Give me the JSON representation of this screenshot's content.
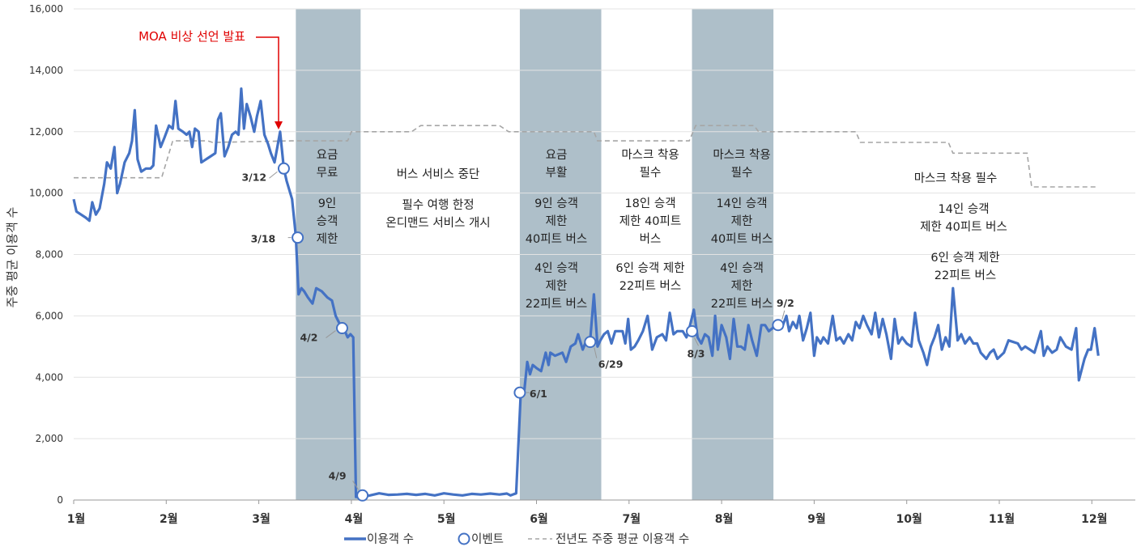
{
  "chart_data": {
    "type": "line",
    "ylabel": "주중 평균 이용객 수",
    "ylim": [
      0,
      16000
    ],
    "yticks": [
      "0",
      "2,000",
      "4,000",
      "6,000",
      "8,000",
      "10,000",
      "12,000",
      "14,000",
      "16,000"
    ],
    "months": [
      "1월",
      "2월",
      "3월",
      "4월",
      "5월",
      "6월",
      "7월",
      "8월",
      "9월",
      "10월",
      "11월",
      "12월"
    ],
    "series": [
      {
        "name": "이용객 수",
        "color": "#4472C4",
        "points": [
          [
            1.0,
            9800
          ],
          [
            1.03,
            9400
          ],
          [
            1.08,
            9300
          ],
          [
            1.13,
            9200
          ],
          [
            1.17,
            9100
          ],
          [
            1.2,
            9700
          ],
          [
            1.24,
            9300
          ],
          [
            1.28,
            9500
          ],
          [
            1.33,
            10300
          ],
          [
            1.36,
            11000
          ],
          [
            1.4,
            10800
          ],
          [
            1.44,
            11500
          ],
          [
            1.47,
            10000
          ],
          [
            1.5,
            10300
          ],
          [
            1.55,
            11000
          ],
          [
            1.6,
            11300
          ],
          [
            1.63,
            11700
          ],
          [
            1.66,
            12700
          ],
          [
            1.69,
            11100
          ],
          [
            1.73,
            10700
          ],
          [
            1.78,
            10800
          ],
          [
            1.83,
            10800
          ],
          [
            1.86,
            10900
          ],
          [
            1.89,
            12200
          ],
          [
            1.94,
            11500
          ],
          [
            1.98,
            11800
          ],
          [
            2.03,
            12200
          ],
          [
            2.07,
            12100
          ],
          [
            2.1,
            13000
          ],
          [
            2.13,
            12100
          ],
          [
            2.18,
            12000
          ],
          [
            2.22,
            11900
          ],
          [
            2.25,
            12000
          ],
          [
            2.28,
            11500
          ],
          [
            2.31,
            12100
          ],
          [
            2.35,
            12000
          ],
          [
            2.38,
            11000
          ],
          [
            2.43,
            11100
          ],
          [
            2.48,
            11200
          ],
          [
            2.53,
            11300
          ],
          [
            2.56,
            12400
          ],
          [
            2.59,
            12600
          ],
          [
            2.63,
            11200
          ],
          [
            2.67,
            11500
          ],
          [
            2.71,
            11900
          ],
          [
            2.75,
            12000
          ],
          [
            2.78,
            11900
          ],
          [
            2.81,
            13400
          ],
          [
            2.84,
            12100
          ],
          [
            2.87,
            12900
          ],
          [
            2.91,
            12500
          ],
          [
            2.95,
            12000
          ],
          [
            2.98,
            12500
          ],
          [
            3.02,
            13000
          ],
          [
            3.06,
            11900
          ],
          [
            3.1,
            11600
          ],
          [
            3.13,
            11300
          ],
          [
            3.17,
            11000
          ],
          [
            3.2,
            11500
          ],
          [
            3.23,
            12000
          ],
          [
            3.27,
            10800
          ],
          [
            3.3,
            10400
          ],
          [
            3.36,
            9800
          ],
          [
            3.4,
            8600
          ],
          [
            3.43,
            6700
          ],
          [
            3.46,
            6900
          ],
          [
            3.49,
            6800
          ],
          [
            3.53,
            6600
          ],
          [
            3.58,
            6400
          ],
          [
            3.62,
            6900
          ],
          [
            3.68,
            6800
          ],
          [
            3.74,
            6600
          ],
          [
            3.79,
            6500
          ],
          [
            3.83,
            6000
          ],
          [
            3.88,
            5700
          ],
          [
            3.93,
            5500
          ],
          [
            3.96,
            5300
          ],
          [
            3.99,
            5400
          ],
          [
            4.02,
            5300
          ],
          [
            4.05,
            100
          ],
          [
            4.1,
            100
          ],
          [
            4.2,
            150
          ],
          [
            4.3,
            220
          ],
          [
            4.4,
            170
          ],
          [
            4.5,
            180
          ],
          [
            4.6,
            200
          ],
          [
            4.7,
            170
          ],
          [
            4.8,
            200
          ],
          [
            4.9,
            150
          ],
          [
            5.0,
            220
          ],
          [
            5.1,
            180
          ],
          [
            5.2,
            150
          ],
          [
            5.3,
            200
          ],
          [
            5.4,
            180
          ],
          [
            5.5,
            210
          ],
          [
            5.6,
            180
          ],
          [
            5.68,
            210
          ],
          [
            5.72,
            150
          ],
          [
            5.78,
            220
          ],
          [
            5.83,
            3500
          ],
          [
            5.87,
            3600
          ],
          [
            5.9,
            4500
          ],
          [
            5.93,
            4100
          ],
          [
            5.96,
            4400
          ],
          [
            6.0,
            4300
          ],
          [
            6.05,
            4200
          ],
          [
            6.1,
            4800
          ],
          [
            6.13,
            4400
          ],
          [
            6.15,
            4800
          ],
          [
            6.2,
            4700
          ],
          [
            6.28,
            4800
          ],
          [
            6.32,
            4500
          ],
          [
            6.37,
            5000
          ],
          [
            6.42,
            5100
          ],
          [
            6.45,
            5400
          ],
          [
            6.5,
            4900
          ],
          [
            6.54,
            5200
          ],
          [
            6.58,
            5200
          ],
          [
            6.62,
            6700
          ],
          [
            6.66,
            5000
          ],
          [
            6.69,
            5200
          ],
          [
            6.73,
            5400
          ],
          [
            6.77,
            5500
          ],
          [
            6.81,
            5100
          ],
          [
            6.85,
            5500
          ],
          [
            6.9,
            5500
          ],
          [
            6.93,
            5500
          ],
          [
            6.96,
            5100
          ],
          [
            6.99,
            5900
          ],
          [
            7.02,
            4900
          ],
          [
            7.06,
            5000
          ],
          [
            7.1,
            5200
          ],
          [
            7.15,
            5500
          ],
          [
            7.2,
            6000
          ],
          [
            7.25,
            4900
          ],
          [
            7.3,
            5300
          ],
          [
            7.36,
            5400
          ],
          [
            7.4,
            5200
          ],
          [
            7.44,
            6100
          ],
          [
            7.48,
            5400
          ],
          [
            7.52,
            5500
          ],
          [
            7.55,
            5500
          ],
          [
            7.58,
            5500
          ],
          [
            7.62,
            5300
          ],
          [
            7.66,
            5700
          ],
          [
            7.7,
            6200
          ],
          [
            7.74,
            5300
          ],
          [
            7.78,
            5100
          ],
          [
            7.82,
            5400
          ],
          [
            7.86,
            5300
          ],
          [
            7.9,
            4700
          ],
          [
            7.93,
            6000
          ],
          [
            7.96,
            4900
          ],
          [
            8.0,
            5700
          ],
          [
            8.05,
            5300
          ],
          [
            8.09,
            4600
          ],
          [
            8.13,
            5900
          ],
          [
            8.17,
            5000
          ],
          [
            8.21,
            5000
          ],
          [
            8.25,
            4900
          ],
          [
            8.29,
            5700
          ],
          [
            8.33,
            5200
          ],
          [
            8.38,
            4700
          ],
          [
            8.43,
            5700
          ],
          [
            8.47,
            5700
          ],
          [
            8.51,
            5500
          ],
          [
            8.55,
            5600
          ],
          [
            8.59,
            5800
          ],
          [
            8.65,
            5600
          ],
          [
            8.7,
            6000
          ],
          [
            8.73,
            5500
          ],
          [
            8.77,
            5800
          ],
          [
            8.81,
            5600
          ],
          [
            8.84,
            6000
          ],
          [
            8.88,
            5200
          ],
          [
            8.92,
            5600
          ],
          [
            8.96,
            6100
          ],
          [
            9.0,
            4700
          ],
          [
            9.03,
            5300
          ],
          [
            9.07,
            5100
          ],
          [
            9.1,
            5300
          ],
          [
            9.15,
            5100
          ],
          [
            9.2,
            6000
          ],
          [
            9.24,
            5200
          ],
          [
            9.28,
            5300
          ],
          [
            9.32,
            5100
          ],
          [
            9.37,
            5400
          ],
          [
            9.41,
            5200
          ],
          [
            9.45,
            5800
          ],
          [
            9.49,
            5600
          ],
          [
            9.53,
            6000
          ],
          [
            9.57,
            5700
          ],
          [
            9.62,
            5400
          ],
          [
            9.66,
            6100
          ],
          [
            9.7,
            5300
          ],
          [
            9.74,
            5900
          ],
          [
            9.78,
            5400
          ],
          [
            9.83,
            4600
          ],
          [
            9.87,
            5900
          ],
          [
            9.91,
            5100
          ],
          [
            9.95,
            5300
          ],
          [
            10.0,
            5100
          ],
          [
            10.05,
            5000
          ],
          [
            10.09,
            6100
          ],
          [
            10.13,
            5200
          ],
          [
            10.18,
            4800
          ],
          [
            10.22,
            4400
          ],
          [
            10.26,
            5000
          ],
          [
            10.3,
            5300
          ],
          [
            10.34,
            5700
          ],
          [
            10.38,
            4900
          ],
          [
            10.42,
            5300
          ],
          [
            10.46,
            5000
          ],
          [
            10.5,
            6900
          ],
          [
            10.55,
            5200
          ],
          [
            10.59,
            5400
          ],
          [
            10.63,
            5100
          ],
          [
            10.68,
            5300
          ],
          [
            10.72,
            5100
          ],
          [
            10.76,
            5100
          ],
          [
            10.8,
            4800
          ],
          [
            10.86,
            4600
          ],
          [
            10.9,
            4800
          ],
          [
            10.94,
            4900
          ],
          [
            10.98,
            4600
          ],
          [
            11.05,
            4800
          ],
          [
            11.1,
            5200
          ],
          [
            11.2,
            5100
          ],
          [
            11.24,
            4900
          ],
          [
            11.28,
            5000
          ],
          [
            11.33,
            4900
          ],
          [
            11.38,
            4800
          ],
          [
            11.45,
            5500
          ],
          [
            11.48,
            4700
          ],
          [
            11.52,
            5000
          ],
          [
            11.57,
            4800
          ],
          [
            11.62,
            4900
          ],
          [
            11.66,
            5300
          ],
          [
            11.72,
            5000
          ],
          [
            11.78,
            4900
          ],
          [
            11.83,
            5600
          ],
          [
            11.86,
            3900
          ],
          [
            11.92,
            4600
          ],
          [
            11.96,
            4900
          ],
          [
            11.99,
            4900
          ],
          [
            12.03,
            5600
          ],
          [
            12.07,
            4700
          ]
        ]
      },
      {
        "name": "전년도 주중 평균 이용객 수",
        "color": "#A6A6A6",
        "steps": [
          [
            1.0,
            10500
          ],
          [
            1.95,
            10500
          ],
          [
            2.07,
            11700
          ],
          [
            2.45,
            11700
          ],
          [
            2.5,
            11650
          ],
          [
            3.35,
            11700
          ],
          [
            3.96,
            11700
          ],
          [
            4.0,
            12000
          ],
          [
            4.65,
            12000
          ],
          [
            4.75,
            12200
          ],
          [
            5.6,
            12200
          ],
          [
            5.7,
            12000
          ],
          [
            6.62,
            12000
          ],
          [
            6.66,
            11700
          ],
          [
            7.65,
            11700
          ],
          [
            7.72,
            12200
          ],
          [
            8.35,
            12200
          ],
          [
            8.4,
            12000
          ],
          [
            9.45,
            12000
          ],
          [
            9.5,
            11650
          ],
          [
            10.45,
            11650
          ],
          [
            10.5,
            11300
          ],
          [
            11.3,
            11300
          ],
          [
            11.35,
            10200
          ],
          [
            12.07,
            10200
          ]
        ]
      }
    ],
    "events": [
      {
        "label": "3/12",
        "x": 3.27,
        "y": 10800
      },
      {
        "label": "3/18",
        "x": 3.42,
        "y": 8550
      },
      {
        "label": "4/2",
        "x": 3.9,
        "y": 5600
      },
      {
        "label": "4/9",
        "x": 4.12,
        "y": 150
      },
      {
        "label": "6/1",
        "x": 5.82,
        "y": 3500
      },
      {
        "label": "6/29",
        "x": 6.58,
        "y": 5150
      },
      {
        "label": "8/3",
        "x": 7.68,
        "y": 5500
      },
      {
        "label": "9/2",
        "x": 8.61,
        "y": 5700
      }
    ],
    "shaded_periods": [
      [
        3.4,
        4.1
      ],
      [
        5.82,
        6.7
      ],
      [
        7.68,
        8.56
      ]
    ],
    "annotations": {
      "moa": "MOA 비상 선언 발표",
      "p1_l1": "요금",
      "p1_l2": "무료",
      "p1_l3": "9인",
      "p1_l4": "승객",
      "p1_l5": "제한",
      "p2_l1": "버스 서비스 중단",
      "p2_l2": "필수 여행 한정",
      "p2_l3": "온디맨드 서비스 개시",
      "p3_l1": "요금",
      "p3_l2": "부활",
      "p3_l3": "9인 승객",
      "p3_l4": "제한",
      "p3_l5": "40피트 버스",
      "p3_l6": "4인 승객",
      "p3_l7": "제한",
      "p3_l8": "22피트 버스",
      "p4_l1": "마스크 착용",
      "p4_l2": "필수",
      "p4_l3": "18인 승객",
      "p4_l4": "제한 40피트",
      "p4_l5": "버스",
      "p4_l6": "6인 승객 제한",
      "p4_l7": "22피트 버스",
      "p5_l1": "마스크 착용",
      "p5_l2": "필수",
      "p5_l3": "14인 승객",
      "p5_l4": "제한",
      "p5_l5": "40피트 버스",
      "p5_l6": "4인 승객",
      "p5_l7": "제한",
      "p5_l8": "22피트 버스",
      "p6_l1": "마스크 착용 필수",
      "p6_l2": "14인 승객",
      "p6_l3": "제한 40피트 버스",
      "p6_l4": "6인 승객 제한",
      "p6_l5": "22피트 버스"
    },
    "legend": {
      "line": "이용객 수",
      "event": "이벤트",
      "prev": "전년도 주중 평균 이용객 수"
    },
    "shade_color": "#AEBFC9",
    "highlight_color": "#E00000"
  }
}
